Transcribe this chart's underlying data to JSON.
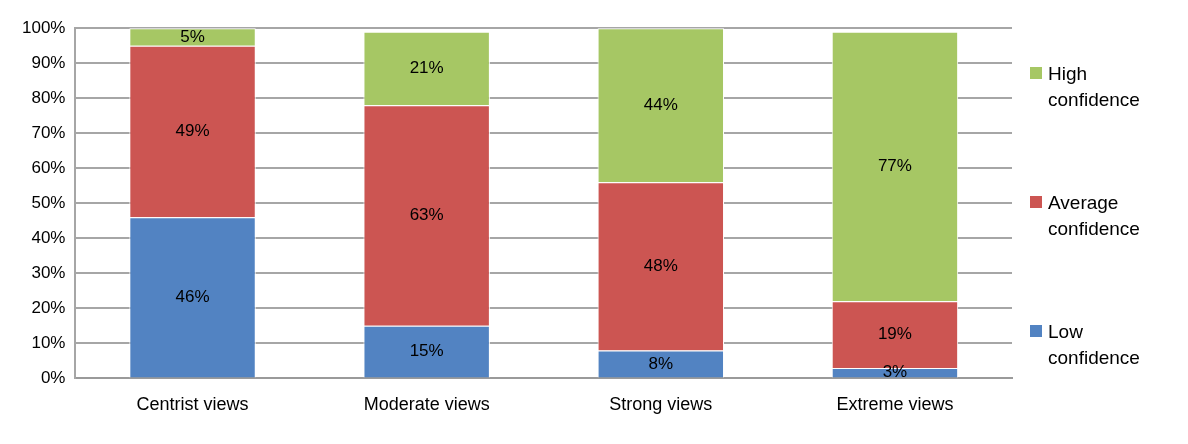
{
  "chart_data": {
    "type": "bar",
    "stacked": true,
    "categories": [
      "Centrist views",
      "Moderate views",
      "Strong views",
      "Extreme views"
    ],
    "series": [
      {
        "name": "Low confidence",
        "color": "#5283c2",
        "values": [
          46,
          15,
          8,
          3
        ],
        "value_labels": [
          "46%",
          "15%",
          "8%",
          "3%"
        ]
      },
      {
        "name": "Average confidence",
        "color": "#cc5552",
        "values": [
          49,
          63,
          48,
          19
        ],
        "value_labels": [
          "49%",
          "63%",
          "48%",
          "19%"
        ]
      },
      {
        "name": "High confidence",
        "color": "#a6c764",
        "values": [
          5,
          21,
          44,
          77
        ],
        "value_labels": [
          "5%",
          "21%",
          "44%",
          "77%"
        ]
      }
    ],
    "ylim": [
      0,
      100
    ],
    "yticks": [
      {
        "value": 0,
        "label": "0%"
      },
      {
        "value": 10,
        "label": "10%"
      },
      {
        "value": 20,
        "label": "20%"
      },
      {
        "value": 30,
        "label": "30%"
      },
      {
        "value": 40,
        "label": "40%"
      },
      {
        "value": 50,
        "label": "50%"
      },
      {
        "value": 60,
        "label": "60%"
      },
      {
        "value": 70,
        "label": "70%"
      },
      {
        "value": 80,
        "label": "80%"
      },
      {
        "value": 90,
        "label": "90%"
      },
      {
        "value": 100,
        "label": "100%"
      }
    ],
    "grid": "y",
    "legend": "right"
  }
}
